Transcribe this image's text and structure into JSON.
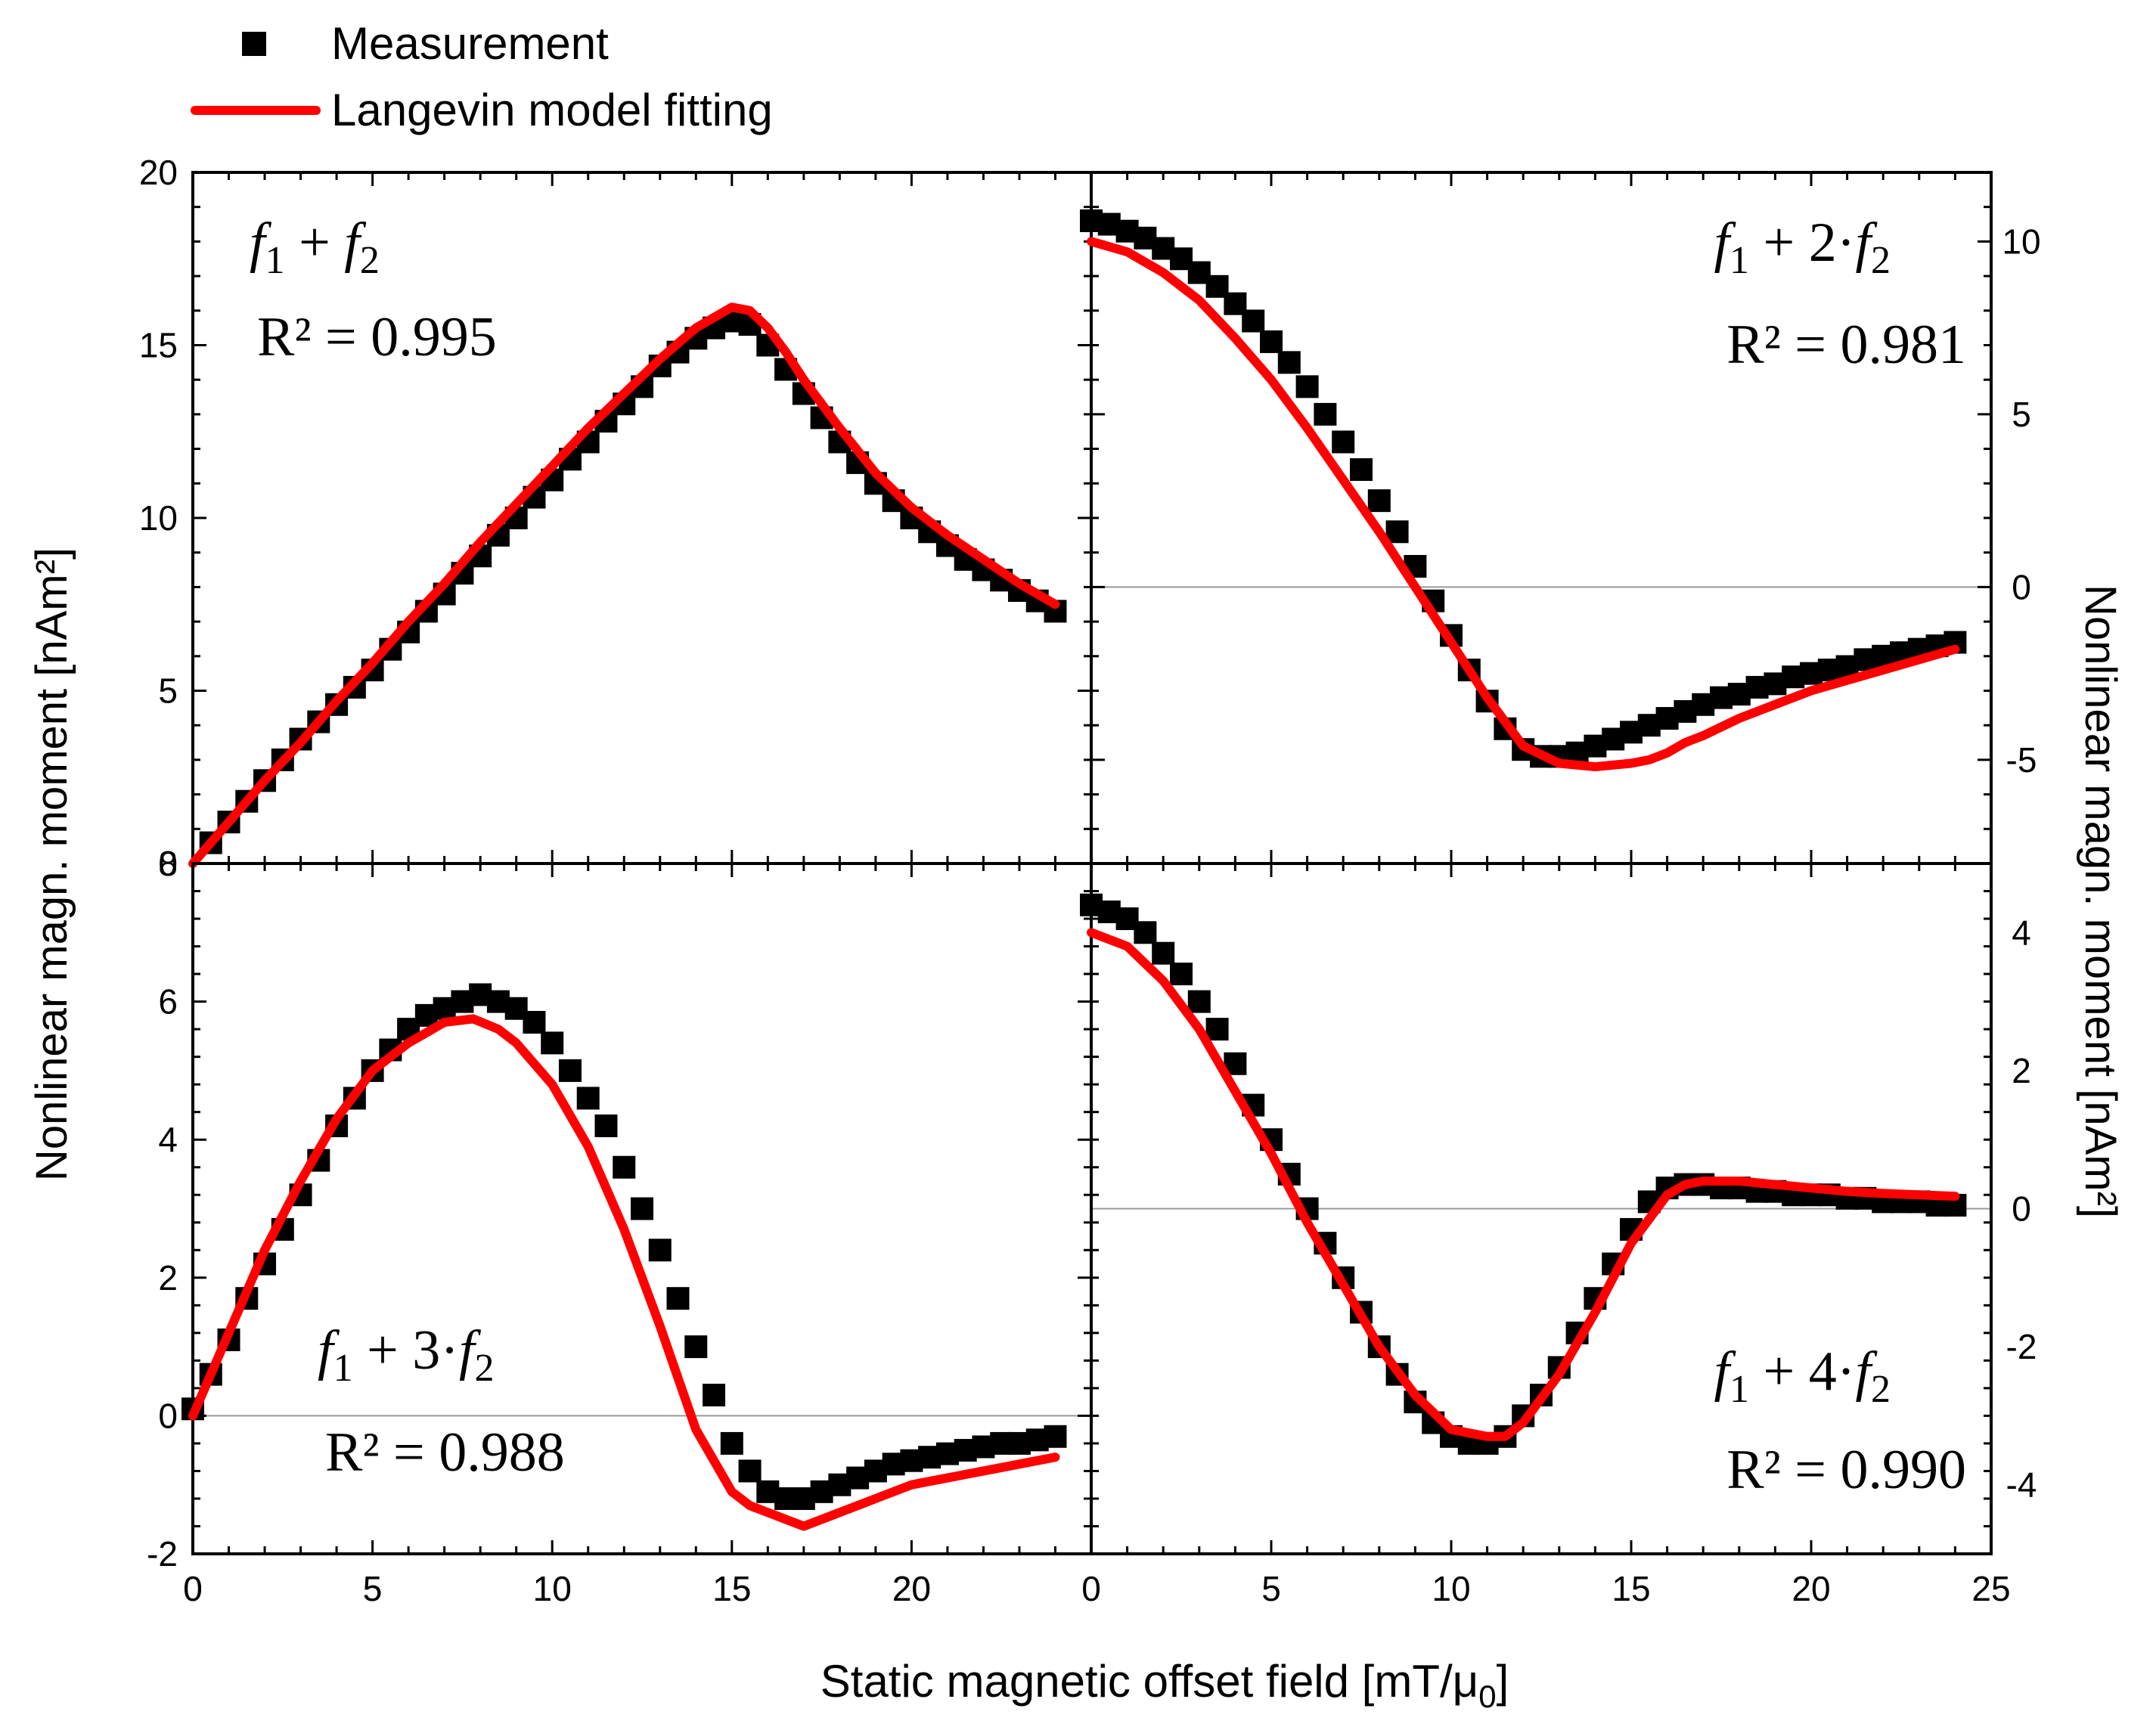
{
  "legend": {
    "measurement_label": "Measurement",
    "fit_label": "Langevin model fitting",
    "colors": {
      "measurement": "#000000",
      "fit": "#ff0000"
    }
  },
  "axes": {
    "xlabel": "Static magnetic offset field [mT/μ",
    "xlabel_sub": "0",
    "xlabel_end": "]",
    "ylabel_left": "Nonlinear magn. moment [nAm²]",
    "ylabel_right": "Nonlinear magn. moment [nAm²]",
    "zero_line_color": "#999999"
  },
  "chart_data": [
    {
      "type": "scatter+line",
      "panel": "top-left",
      "label": {
        "f1": "f",
        "sub1": "1",
        "op": " + ",
        "f2": "f",
        "sub2": "2"
      },
      "r2": "R² = 0.995",
      "xlim": [
        0,
        25
      ],
      "ylim": [
        0,
        20
      ],
      "xticks": [
        "0",
        "5",
        "10",
        "15",
        "20"
      ],
      "yticks": [
        "0",
        "5",
        "10",
        "15",
        "20"
      ],
      "y_axis": "left",
      "measurement": {
        "x": [
          0.5,
          1,
          1.5,
          2,
          2.5,
          3,
          3.5,
          4,
          4.5,
          5,
          5.5,
          6,
          6.5,
          7,
          7.5,
          8,
          8.5,
          9,
          9.5,
          10,
          10.5,
          11,
          11.5,
          12,
          12.5,
          13,
          13.5,
          14,
          14.5,
          15,
          15.5,
          16,
          16.5,
          17,
          17.5,
          18,
          18.5,
          19,
          19.5,
          20,
          20.5,
          21,
          21.5,
          22,
          22.5,
          23,
          23.5,
          24
        ],
        "y": [
          0.6,
          1.2,
          1.8,
          2.4,
          3.0,
          3.6,
          4.1,
          4.6,
          5.1,
          5.6,
          6.2,
          6.7,
          7.3,
          7.8,
          8.4,
          8.9,
          9.5,
          10.0,
          10.6,
          11.1,
          11.7,
          12.2,
          12.8,
          13.3,
          13.8,
          14.4,
          14.8,
          15.2,
          15.5,
          15.7,
          15.6,
          15.0,
          14.3,
          13.6,
          12.9,
          12.2,
          11.6,
          11.0,
          10.5,
          10.0,
          9.6,
          9.2,
          8.8,
          8.5,
          8.2,
          7.9,
          7.6,
          7.3
        ]
      },
      "fit": {
        "x": [
          0,
          1,
          2,
          3,
          4,
          5,
          6,
          7,
          8,
          9,
          10,
          11,
          12,
          13,
          14,
          15,
          15.5,
          16,
          16.5,
          17,
          18,
          19,
          20,
          21,
          22,
          23,
          24
        ],
        "y": [
          0,
          1.2,
          2.4,
          3.5,
          4.7,
          5.8,
          7.0,
          8.1,
          9.3,
          10.4,
          11.5,
          12.6,
          13.6,
          14.6,
          15.5,
          16.1,
          16.0,
          15.5,
          14.8,
          14.0,
          12.6,
          11.3,
          10.3,
          9.5,
          8.8,
          8.1,
          7.5
        ]
      }
    },
    {
      "type": "scatter+line",
      "panel": "top-right",
      "label": {
        "f1": "f",
        "sub1": "1",
        "op": " + 2·",
        "f2": "f",
        "sub2": "2"
      },
      "r2": "R² = 0.981",
      "xlim": [
        0,
        25
      ],
      "ylim": [
        -8,
        12
      ],
      "yticks": [
        "-5",
        "0",
        "5",
        "10"
      ],
      "ytick_values": [
        -5,
        0,
        5,
        10
      ],
      "y_axis": "right",
      "measurement": {
        "x": [
          0,
          0.5,
          1,
          1.5,
          2,
          2.5,
          3,
          3.5,
          4,
          4.5,
          5,
          5.5,
          6,
          6.5,
          7,
          7.5,
          8,
          8.5,
          9,
          9.5,
          10,
          10.5,
          11,
          11.5,
          12,
          12.5,
          13,
          13.5,
          14,
          14.5,
          15,
          15.5,
          16,
          16.5,
          17,
          17.5,
          18,
          18.5,
          19,
          19.5,
          20,
          20.5,
          21,
          21.5,
          22,
          22.5,
          23,
          23.5,
          24
        ],
        "y": [
          10.6,
          10.5,
          10.3,
          10.1,
          9.8,
          9.5,
          9.1,
          8.7,
          8.2,
          7.7,
          7.1,
          6.5,
          5.8,
          5.0,
          4.2,
          3.4,
          2.5,
          1.6,
          0.6,
          -0.4,
          -1.4,
          -2.4,
          -3.3,
          -4.1,
          -4.7,
          -4.9,
          -4.9,
          -4.8,
          -4.6,
          -4.4,
          -4.2,
          -4.0,
          -3.8,
          -3.6,
          -3.4,
          -3.2,
          -3.1,
          -2.9,
          -2.8,
          -2.6,
          -2.5,
          -2.4,
          -2.3,
          -2.1,
          -2.0,
          -1.9,
          -1.8,
          -1.7,
          -1.6
        ]
      },
      "fit": {
        "x": [
          0,
          1,
          2,
          3,
          4,
          5,
          6,
          7,
          8,
          9,
          10,
          11,
          12,
          13,
          14,
          15,
          15.5,
          16,
          16.5,
          17,
          18,
          19,
          20,
          21,
          22,
          23,
          24
        ],
        "y": [
          10.0,
          9.7,
          9.1,
          8.3,
          7.2,
          6.0,
          4.6,
          3.1,
          1.6,
          0.0,
          -1.6,
          -3.2,
          -4.6,
          -5.1,
          -5.2,
          -5.1,
          -5.0,
          -4.8,
          -4.5,
          -4.3,
          -3.8,
          -3.4,
          -3.0,
          -2.7,
          -2.4,
          -2.1,
          -1.8
        ]
      }
    },
    {
      "type": "scatter+line",
      "panel": "bottom-left",
      "label": {
        "f1": "f",
        "sub1": "1",
        "op": " + 3·",
        "f2": "f",
        "sub2": "2"
      },
      "r2": "R² = 0.988",
      "xlim": [
        0,
        25
      ],
      "ylim": [
        -2,
        8
      ],
      "xticks": [
        "0",
        "5",
        "10",
        "15",
        "20"
      ],
      "yticks": [
        "-2",
        "0",
        "2",
        "4",
        "6",
        "8"
      ],
      "ytick_values": [
        -2,
        0,
        2,
        4,
        6,
        8
      ],
      "y_axis": "left",
      "measurement": {
        "x": [
          0,
          0.5,
          1,
          1.5,
          2,
          2.5,
          3,
          3.5,
          4,
          4.5,
          5,
          5.5,
          6,
          6.5,
          7,
          7.5,
          8,
          8.5,
          9,
          9.5,
          10,
          10.5,
          11,
          11.5,
          12,
          12.5,
          13,
          13.5,
          14,
          14.5,
          15,
          15.5,
          16,
          16.5,
          17,
          17.5,
          18,
          18.5,
          19,
          19.5,
          20,
          20.5,
          21,
          21.5,
          22,
          22.5,
          23,
          23.5,
          24
        ],
        "y": [
          0.1,
          0.6,
          1.1,
          1.7,
          2.2,
          2.7,
          3.2,
          3.7,
          4.2,
          4.6,
          5.0,
          5.3,
          5.6,
          5.8,
          5.9,
          6.0,
          6.1,
          6.0,
          5.9,
          5.7,
          5.4,
          5.0,
          4.6,
          4.2,
          3.6,
          3.0,
          2.4,
          1.7,
          1.0,
          0.3,
          -0.4,
          -0.8,
          -1.1,
          -1.2,
          -1.2,
          -1.1,
          -1.0,
          -0.9,
          -0.8,
          -0.7,
          -0.65,
          -0.6,
          -0.55,
          -0.5,
          -0.45,
          -0.4,
          -0.4,
          -0.35,
          -0.3
        ]
      },
      "fit": {
        "x": [
          0,
          1,
          2,
          3,
          4,
          5,
          6,
          7,
          7.8,
          8.5,
          9,
          10,
          11,
          12,
          13,
          14,
          15,
          15.5,
          16,
          16.5,
          17,
          17.5,
          18,
          19,
          20,
          21,
          22,
          23,
          24
        ],
        "y": [
          0,
          1.2,
          2.4,
          3.4,
          4.3,
          5.0,
          5.4,
          5.7,
          5.75,
          5.6,
          5.4,
          4.8,
          3.9,
          2.7,
          1.3,
          -0.2,
          -1.1,
          -1.3,
          -1.4,
          -1.5,
          -1.6,
          -1.5,
          -1.4,
          -1.2,
          -1.0,
          -0.9,
          -0.8,
          -0.7,
          -0.6
        ]
      }
    },
    {
      "type": "scatter+line",
      "panel": "bottom-right",
      "label": {
        "f1": "f",
        "sub1": "1",
        "op": " + 4·",
        "f2": "f",
        "sub2": "2"
      },
      "r2": "R² = 0.990",
      "xlim": [
        0,
        25
      ],
      "ylim": [
        -5,
        5
      ],
      "xticks": [
        "0",
        "5",
        "10",
        "15",
        "20",
        "25"
      ],
      "yticks": [
        "-4",
        "-2",
        "0",
        "2",
        "4"
      ],
      "ytick_values": [
        -4,
        -2,
        0,
        2,
        4
      ],
      "y_axis": "right",
      "measurement": {
        "x": [
          0,
          0.5,
          1,
          1.5,
          2,
          2.5,
          3,
          3.5,
          4,
          4.5,
          5,
          5.5,
          6,
          6.5,
          7,
          7.5,
          8,
          8.5,
          9,
          9.5,
          10,
          10.5,
          11,
          11.5,
          12,
          12.5,
          13,
          13.5,
          14,
          14.5,
          15,
          15.5,
          16,
          16.5,
          17,
          17.5,
          18,
          18.5,
          19,
          19.5,
          20,
          20.5,
          21,
          21.5,
          22,
          22.5,
          23,
          23.5,
          24
        ],
        "y": [
          4.4,
          4.3,
          4.2,
          4.0,
          3.7,
          3.4,
          3.0,
          2.6,
          2.1,
          1.5,
          1.0,
          0.5,
          0.0,
          -0.5,
          -1.0,
          -1.5,
          -2.0,
          -2.4,
          -2.8,
          -3.1,
          -3.3,
          -3.4,
          -3.4,
          -3.3,
          -3.0,
          -2.7,
          -2.3,
          -1.8,
          -1.3,
          -0.8,
          -0.3,
          0.1,
          0.3,
          0.35,
          0.35,
          0.3,
          0.3,
          0.25,
          0.25,
          0.2,
          0.2,
          0.2,
          0.15,
          0.15,
          0.1,
          0.1,
          0.1,
          0.05,
          0.05
        ]
      },
      "fit": {
        "x": [
          0,
          1,
          2,
          3,
          4,
          5,
          6,
          7,
          8,
          9,
          10,
          11,
          11.5,
          12,
          13,
          14,
          15,
          16,
          16.5,
          17,
          18,
          19,
          20,
          21,
          22,
          23,
          24
        ],
        "y": [
          4.0,
          3.8,
          3.3,
          2.6,
          1.7,
          0.8,
          -0.2,
          -1.1,
          -2.0,
          -2.7,
          -3.2,
          -3.3,
          -3.3,
          -3.1,
          -2.4,
          -1.5,
          -0.5,
          0.2,
          0.35,
          0.4,
          0.4,
          0.35,
          0.3,
          0.25,
          0.22,
          0.2,
          0.18
        ]
      }
    }
  ]
}
